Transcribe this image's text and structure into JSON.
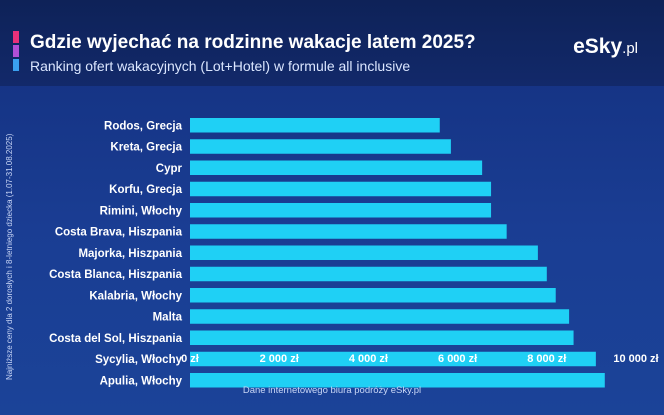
{
  "header": {
    "title": "Gdzie wyjechać na rodzinne wakacje latem 2025?",
    "subtitle": "Ranking ofert wakacyjnych (Lot+Hotel) w formule all inclusive",
    "logo_main": "eSky",
    "logo_tld": ".pl",
    "accent_colors": [
      "#e8317a",
      "#b04fd6",
      "#3aa0f0"
    ]
  },
  "side_label": "Najniższe ceny dla 2 dorosłych i 8-letniego dziecka (1.07-31.08.2025)",
  "footer": "Dane internetowego biura podróży eSky.pl",
  "chart_data": {
    "type": "bar",
    "orientation": "horizontal",
    "categories": [
      "Rodos, Grecja",
      "Kreta, Grecja",
      "Cypr",
      "Korfu, Grecja",
      "Rimini, Włochy",
      "Costa Brava, Hiszpania",
      "Majorka, Hiszpania",
      "Costa Blanca, Hiszpania",
      "Kalabria, Włochy",
      "Malta",
      "Costa del Sol, Hiszpania",
      "Sycylia, Włochy",
      "Apulia, Włochy"
    ],
    "values": [
      5600,
      5850,
      6550,
      6750,
      6750,
      7100,
      7800,
      8000,
      8200,
      8500,
      8600,
      9100,
      9300
    ],
    "xlim": [
      0,
      10000
    ],
    "x_ticks": [
      0,
      2000,
      4000,
      6000,
      8000,
      10000
    ],
    "x_tick_labels": [
      "0 zł",
      "2 000 zł",
      "4 000 zł",
      "6 000 zł",
      "8 000 zł",
      "10 000 zł"
    ],
    "bar_color": "#1fd0f5",
    "grid": false,
    "legend": "none"
  }
}
